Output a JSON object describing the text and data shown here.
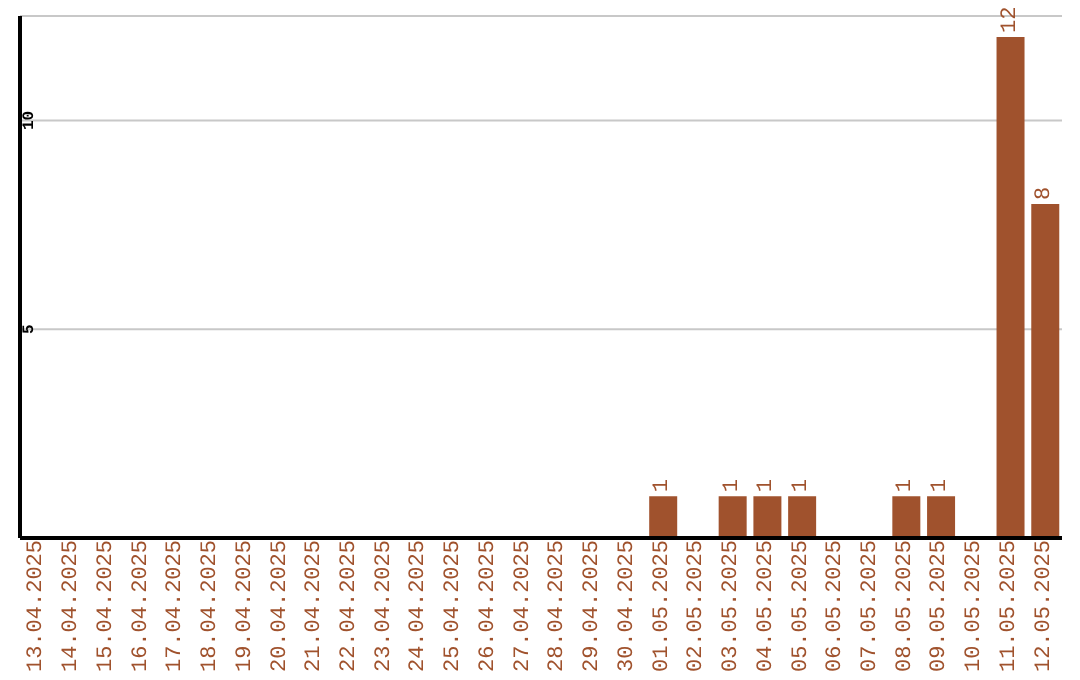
{
  "chart_data": {
    "type": "bar",
    "categories": [
      "13.04.2025",
      "14.04.2025",
      "15.04.2025",
      "16.04.2025",
      "17.04.2025",
      "18.04.2025",
      "19.04.2025",
      "20.04.2025",
      "21.04.2025",
      "22.04.2025",
      "23.04.2025",
      "24.04.2025",
      "25.04.2025",
      "26.04.2025",
      "27.04.2025",
      "28.04.2025",
      "29.04.2025",
      "30.04.2025",
      "01.05.2025",
      "02.05.2025",
      "03.05.2025",
      "04.05.2025",
      "05.05.2025",
      "06.05.2025",
      "07.05.2025",
      "08.05.2025",
      "09.05.2025",
      "10.05.2025",
      "11.05.2025",
      "12.05.2025"
    ],
    "values": [
      0,
      0,
      0,
      0,
      0,
      0,
      0,
      0,
      0,
      0,
      0,
      0,
      0,
      0,
      0,
      0,
      0,
      0,
      1,
      0,
      1,
      1,
      1,
      0,
      0,
      1,
      1,
      0,
      12,
      8
    ],
    "value_labels": [
      null,
      null,
      null,
      null,
      null,
      null,
      null,
      null,
      null,
      null,
      null,
      null,
      null,
      null,
      null,
      null,
      null,
      null,
      "1",
      null,
      "1",
      "1",
      "1",
      null,
      null,
      "1",
      "1",
      null,
      "12",
      "8"
    ],
    "color": "#a0522d",
    "ylim": [
      0,
      12.5
    ],
    "yticks": [
      5,
      10
    ],
    "grid": "y"
  }
}
